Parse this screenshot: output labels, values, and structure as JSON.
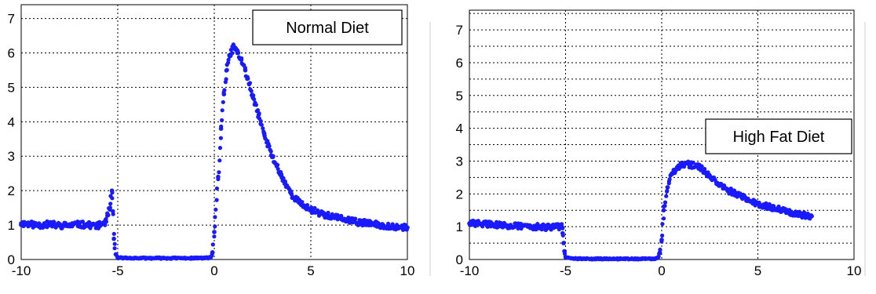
{
  "chart_data": [
    {
      "type": "scatter",
      "legend": "Normal Diet",
      "legend_placement": "top-right",
      "grid": true,
      "xlim": [
        -10,
        10
      ],
      "ylim": [
        0,
        7.4
      ],
      "xticks": [
        -10,
        -5,
        0,
        5,
        10
      ],
      "yticks": [
        0,
        1,
        2,
        3,
        4,
        5,
        6,
        7
      ],
      "xtick_labels": [
        "-10",
        "-5",
        "0",
        "5",
        "10"
      ],
      "ytick_labels": [
        "0",
        "1",
        "2",
        "3",
        "4",
        "5",
        "6",
        "7"
      ],
      "marker_color": "#1a1aff",
      "points": {
        "x": [
          -10.0,
          -9.5,
          -9.0,
          -8.5,
          -8.0,
          -7.5,
          -7.0,
          -6.5,
          -6.0,
          -5.6,
          -5.4,
          -5.3,
          -5.25,
          -5.2,
          -5.1,
          -5.0,
          -4.0,
          -3.0,
          -2.0,
          -1.0,
          -0.2,
          -0.1,
          0.0,
          0.2,
          0.35,
          0.5,
          0.65,
          0.8,
          1.0,
          1.2,
          1.4,
          1.6,
          1.8,
          2.0,
          2.3,
          2.6,
          3.0,
          3.5,
          4.0,
          4.5,
          5.0,
          5.5,
          6.0,
          6.5,
          7.0,
          7.5,
          8.0,
          8.5,
          9.0,
          9.5,
          10.0
        ],
        "y": [
          1.05,
          1.02,
          1.0,
          1.03,
          0.98,
          1.0,
          1.02,
          1.0,
          0.99,
          1.1,
          1.5,
          2.0,
          1.4,
          0.6,
          0.15,
          0.05,
          0.04,
          0.04,
          0.04,
          0.04,
          0.05,
          0.2,
          0.8,
          2.4,
          3.8,
          4.8,
          5.5,
          5.9,
          6.2,
          6.0,
          5.8,
          5.5,
          5.1,
          4.7,
          4.2,
          3.6,
          3.0,
          2.4,
          1.9,
          1.6,
          1.45,
          1.35,
          1.25,
          1.2,
          1.12,
          1.08,
          1.05,
          1.0,
          0.98,
          0.95,
          0.93
        ]
      }
    },
    {
      "type": "scatter",
      "legend": "High Fat Diet",
      "legend_placement": "center-right",
      "grid": true,
      "xlim": [
        -10,
        10
      ],
      "ylim": [
        0,
        7.6
      ],
      "xticks": [
        -10,
        -5,
        0,
        5,
        10
      ],
      "yticks": [
        0,
        1,
        2,
        3,
        4,
        5,
        6,
        7
      ],
      "xtick_labels": [
        "-10",
        "-5",
        "0",
        "5",
        "10"
      ],
      "ytick_labels": [
        "0",
        "1",
        "2",
        "3",
        "4",
        "5",
        "6",
        "7"
      ],
      "marker_color": "#1a1aff",
      "points": {
        "x": [
          -10.0,
          -9.5,
          -9.0,
          -8.5,
          -8.0,
          -7.5,
          -7.0,
          -6.5,
          -6.0,
          -5.5,
          -5.2,
          -5.15,
          -5.1,
          -5.05,
          -5.0,
          -4.5,
          -4.0,
          -3.0,
          -2.0,
          -1.0,
          -0.3,
          -0.2,
          -0.1,
          0.0,
          0.1,
          0.3,
          0.5,
          0.8,
          1.1,
          1.5,
          2.0,
          2.5,
          3.0,
          3.5,
          4.0,
          4.5,
          5.0,
          5.5,
          6.0,
          6.5,
          7.0,
          7.5,
          7.8
        ],
        "y": [
          1.1,
          1.1,
          1.08,
          1.05,
          1.03,
          1.02,
          1.02,
          1.0,
          0.98,
          1.0,
          1.0,
          0.8,
          0.5,
          0.25,
          0.08,
          0.03,
          0.02,
          0.02,
          0.02,
          0.02,
          0.03,
          0.05,
          0.2,
          0.6,
          1.5,
          2.2,
          2.6,
          2.8,
          2.9,
          2.9,
          2.8,
          2.55,
          2.3,
          2.1,
          1.95,
          1.82,
          1.7,
          1.62,
          1.55,
          1.47,
          1.4,
          1.35,
          1.32
        ]
      }
    }
  ]
}
